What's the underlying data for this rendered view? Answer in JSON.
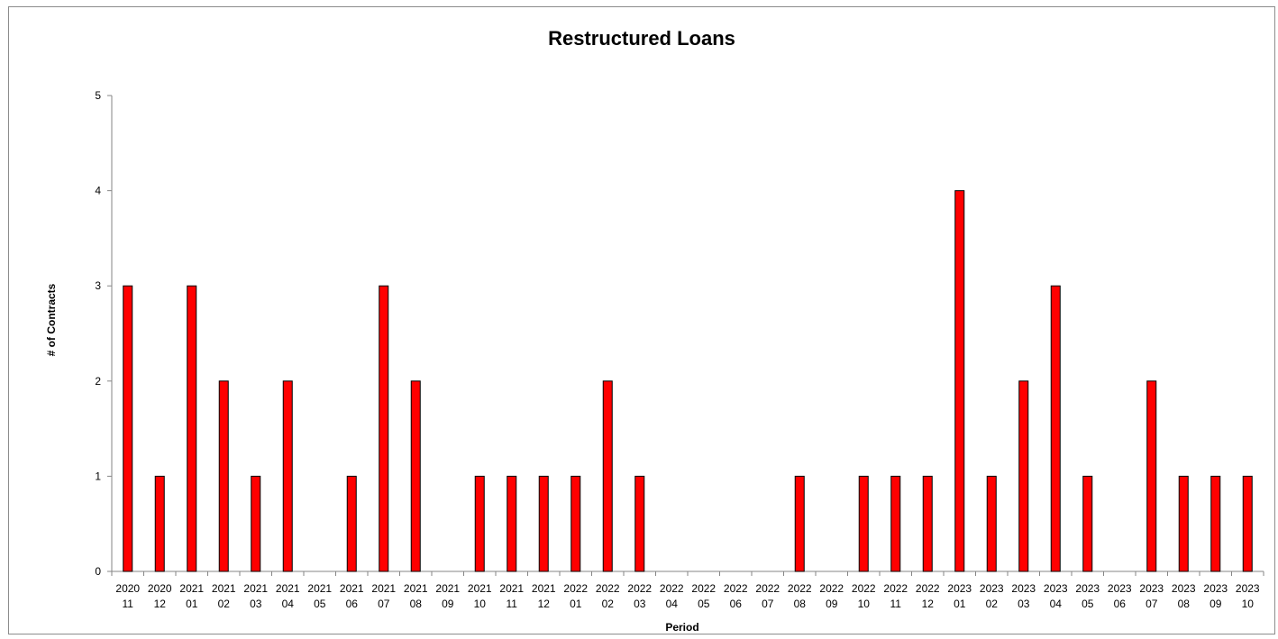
{
  "chart_data": {
    "type": "bar",
    "title": "Restructured Loans",
    "xlabel": "Period",
    "ylabel": "# of Contracts",
    "ylim": [
      0,
      5
    ],
    "yticks": [
      0,
      1,
      2,
      3,
      4,
      5
    ],
    "grid": false,
    "legend": "none",
    "bar_color": "#ff0000",
    "bar_edge_color": "#000000",
    "categories": [
      [
        "2020",
        "11"
      ],
      [
        "2020",
        "12"
      ],
      [
        "2021",
        "01"
      ],
      [
        "2021",
        "02"
      ],
      [
        "2021",
        "03"
      ],
      [
        "2021",
        "04"
      ],
      [
        "2021",
        "05"
      ],
      [
        "2021",
        "06"
      ],
      [
        "2021",
        "07"
      ],
      [
        "2021",
        "08"
      ],
      [
        "2021",
        "09"
      ],
      [
        "2021",
        "10"
      ],
      [
        "2021",
        "11"
      ],
      [
        "2021",
        "12"
      ],
      [
        "2022",
        "01"
      ],
      [
        "2022",
        "02"
      ],
      [
        "2022",
        "03"
      ],
      [
        "2022",
        "04"
      ],
      [
        "2022",
        "05"
      ],
      [
        "2022",
        "06"
      ],
      [
        "2022",
        "07"
      ],
      [
        "2022",
        "08"
      ],
      [
        "2022",
        "09"
      ],
      [
        "2022",
        "10"
      ],
      [
        "2022",
        "11"
      ],
      [
        "2022",
        "12"
      ],
      [
        "2023",
        "01"
      ],
      [
        "2023",
        "02"
      ],
      [
        "2023",
        "03"
      ],
      [
        "2023",
        "04"
      ],
      [
        "2023",
        "05"
      ],
      [
        "2023",
        "06"
      ],
      [
        "2023",
        "07"
      ],
      [
        "2023",
        "08"
      ],
      [
        "2023",
        "09"
      ],
      [
        "2023",
        "10"
      ]
    ],
    "values": [
      3,
      1,
      3,
      2,
      1,
      2,
      0,
      1,
      3,
      2,
      0,
      1,
      1,
      1,
      1,
      2,
      1,
      0,
      0,
      0,
      0,
      1,
      0,
      1,
      1,
      1,
      4,
      1,
      2,
      3,
      1,
      0,
      2,
      1,
      1,
      1
    ]
  }
}
